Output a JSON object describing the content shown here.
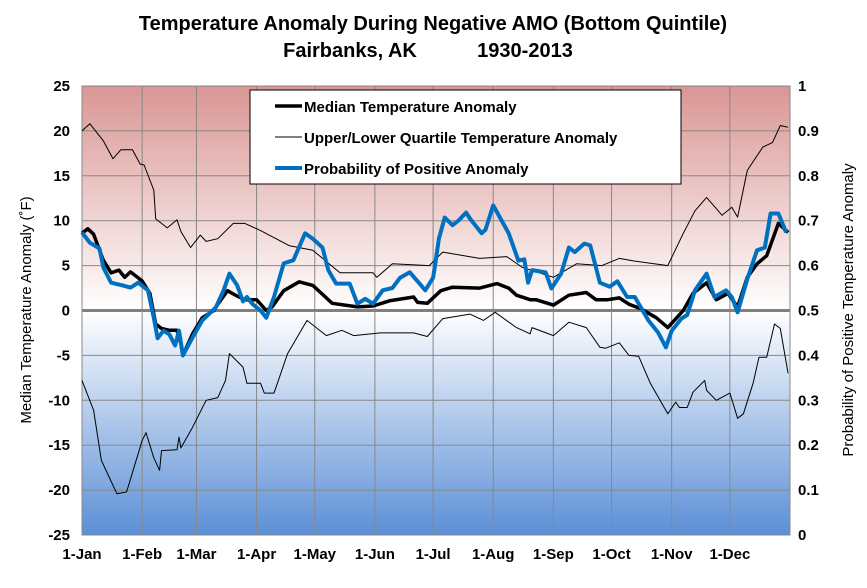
{
  "chart_data": {
    "type": "line",
    "title": "Temperature Anomaly During Negative AMO (Bottom Quintile)",
    "subtitle_location": "Fairbanks, AK",
    "subtitle_period": "1930-2013",
    "ylabel": "Median Temperature Anomaly (˚F)",
    "y2label": "Probability of Positive Temperature Anomaly",
    "xlabel": "",
    "ylim": [
      -25,
      25
    ],
    "y2lim": [
      0,
      1
    ],
    "yticks": [
      "25",
      "20",
      "15",
      "10",
      "5",
      "0",
      "-5",
      "-10",
      "-15",
      "-20",
      "-25"
    ],
    "y2ticks": [
      "1",
      "0.9",
      "0.8",
      "0.7",
      "0.6",
      "0.5",
      "0.4",
      "0.3",
      "0.2",
      "0.1",
      "0"
    ],
    "xticks": [
      "1-Jan",
      "1-Feb",
      "1-Mar",
      "1-Apr",
      "1-May",
      "1-Jun",
      "1-Jul",
      "1-Aug",
      "1-Sep",
      "1-Oct",
      "1-Nov",
      "1-Dec"
    ],
    "grid": true,
    "legend_placement": "top-center",
    "colors": {
      "median": "#000000",
      "quartile": "#000000",
      "probability": "#0070C0",
      "background_top": "#D99694",
      "background_bottom": "#5B8FD6",
      "zero_line": "#808080"
    },
    "series": [
      {
        "name": "Median Temperature Anomaly",
        "axis": "left",
        "points": [
          [
            "1-Jan",
            8.6
          ],
          [
            "4-Jan",
            9.1
          ],
          [
            "7-Jan",
            8.5
          ],
          [
            "12-Jan",
            5.6
          ],
          [
            "16-Jan",
            4.2
          ],
          [
            "20-Jan",
            4.5
          ],
          [
            "23-Jan",
            3.7
          ],
          [
            "26-Jan",
            4.3
          ],
          [
            "1-Feb",
            3.3
          ],
          [
            "5-Feb",
            1.9
          ],
          [
            "8-Feb",
            -1.5
          ],
          [
            "11-Feb",
            -2.0
          ],
          [
            "15-Feb",
            -2.2
          ],
          [
            "19-Feb",
            -2.2
          ],
          [
            "21-Feb",
            -3.7
          ],
          [
            "22-Feb",
            -5.0
          ],
          [
            "27-Feb",
            -2.6
          ],
          [
            "4-Mar",
            -0.8
          ],
          [
            "10-Mar",
            0
          ],
          [
            "12-Mar",
            0.7
          ],
          [
            "17-Mar",
            2.2
          ],
          [
            "22-Mar",
            1.6
          ],
          [
            "26-Mar",
            1.2
          ],
          [
            "1-Apr",
            1.2
          ],
          [
            "6-Apr",
            0
          ],
          [
            "9-Apr",
            0.4
          ],
          [
            "15-Apr",
            2.2
          ],
          [
            "23-Apr",
            3.2
          ],
          [
            "30-Apr",
            2.8
          ],
          [
            "10-May",
            0.8
          ],
          [
            "23-May",
            0.4
          ],
          [
            "31-May",
            0.5
          ],
          [
            "9-Jun",
            1.1
          ],
          [
            "21-Jun",
            1.5
          ],
          [
            "23-Jun",
            0.9
          ],
          [
            "28-Jun",
            0.8
          ],
          [
            "5-Jul",
            2.2
          ],
          [
            "11-Jul",
            2.6
          ],
          [
            "25-Jul",
            2.5
          ],
          [
            "3-Aug",
            3.0
          ],
          [
            "9-Aug",
            2.5
          ],
          [
            "13-Aug",
            1.7
          ],
          [
            "20-Aug",
            1.2
          ],
          [
            "23-Aug",
            1.2
          ],
          [
            "1-Sep",
            0.6
          ],
          [
            "9-Sep",
            1.7
          ],
          [
            "18-Sep",
            2.0
          ],
          [
            "23-Sep",
            1.2
          ],
          [
            "29-Sep",
            1.2
          ],
          [
            "5-Oct",
            1.4
          ],
          [
            "10-Oct",
            0.7
          ],
          [
            "16-Oct",
            0.2
          ],
          [
            "24-Oct",
            -0.8
          ],
          [
            "30-Oct",
            -1.9
          ],
          [
            "7-Nov",
            0
          ],
          [
            "12-Nov",
            1.9
          ],
          [
            "19-Nov",
            3.1
          ],
          [
            "24-Nov",
            1.2
          ],
          [
            "30-Nov",
            1.9
          ],
          [
            "5-Dec",
            0.4
          ],
          [
            "10-Dec",
            3.7
          ],
          [
            "15-Dec",
            5.2
          ],
          [
            "20-Dec",
            6.1
          ],
          [
            "26-Dec",
            9.7
          ],
          [
            "31-Dec",
            8.7
          ]
        ]
      },
      {
        "name": "Upper/Lower Quartile Temperature Anomaly",
        "axis": "left",
        "role": "upper",
        "points": [
          [
            "1-Jan",
            20.0
          ],
          [
            "5-Jan",
            20.8
          ],
          [
            "12-Jan",
            18.9
          ],
          [
            "17-Jan",
            16.9
          ],
          [
            "21-Jan",
            17.9
          ],
          [
            "27-Jan",
            17.9
          ],
          [
            "31-Jan",
            16.3
          ],
          [
            "2-Feb",
            16.2
          ],
          [
            "7-Feb",
            13.4
          ],
          [
            "8-Feb",
            10.2
          ],
          [
            "14-Feb",
            9.2
          ],
          [
            "19-Feb",
            10.1
          ],
          [
            "21-Feb",
            8.8
          ],
          [
            "26-Feb",
            7.0
          ],
          [
            "3-Mar",
            8.4
          ],
          [
            "6-Mar",
            7.7
          ],
          [
            "12-Mar",
            8.0
          ],
          [
            "20-Mar",
            9.7
          ],
          [
            "26-Mar",
            9.7
          ],
          [
            "3-Apr",
            8.9
          ],
          [
            "18-Apr",
            7.2
          ],
          [
            "30-Apr",
            6.7
          ],
          [
            "14-May",
            4.2
          ],
          [
            "31-May",
            4.2
          ],
          [
            "2-Jun",
            3.7
          ],
          [
            "10-Jun",
            5.2
          ],
          [
            "29-Jun",
            5.0
          ],
          [
            "6-Jul",
            6.5
          ],
          [
            "25-Jul",
            5.8
          ],
          [
            "8-Aug",
            6.0
          ],
          [
            "16-Aug",
            4.8
          ],
          [
            "1-Sep",
            3.7
          ],
          [
            "13-Sep",
            5.2
          ],
          [
            "26-Sep",
            5.0
          ],
          [
            "5-Oct",
            5.8
          ],
          [
            "13-Oct",
            5.5
          ],
          [
            "30-Oct",
            5.0
          ],
          [
            "7-Nov",
            8.6
          ],
          [
            "13-Nov",
            11.1
          ],
          [
            "19-Nov",
            12.6
          ],
          [
            "27-Nov",
            10.6
          ],
          [
            "2-Dec",
            11.5
          ],
          [
            "5-Dec",
            10.4
          ],
          [
            "10-Dec",
            15.6
          ],
          [
            "18-Dec",
            18.2
          ],
          [
            "23-Dec",
            18.7
          ],
          [
            "27-Dec",
            20.6
          ],
          [
            "31-Dec",
            20.4
          ]
        ]
      },
      {
        "axis": "left",
        "role": "lower",
        "points": [
          [
            "1-Jan",
            -7.8
          ],
          [
            "7-Jan",
            -11.1
          ],
          [
            "11-Jan",
            -16.7
          ],
          [
            "19-Jan",
            -20.4
          ],
          [
            "24-Jan",
            -20.2
          ],
          [
            "1-Feb",
            -14.5
          ],
          [
            "3-Feb",
            -13.6
          ],
          [
            "7-Feb",
            -16.4
          ],
          [
            "10-Feb",
            -17.8
          ],
          [
            "11-Feb",
            -15.6
          ],
          [
            "19-Feb",
            -15.5
          ],
          [
            "20-Feb",
            -14.1
          ],
          [
            "21-Feb",
            -15.3
          ],
          [
            "27-Feb",
            -13.0
          ],
          [
            "6-Mar",
            -10.0
          ],
          [
            "12-Mar",
            -9.7
          ],
          [
            "16-Mar",
            -7.8
          ],
          [
            "18-Mar",
            -4.8
          ],
          [
            "25-Mar",
            -6.3
          ],
          [
            "27-Mar",
            -8.1
          ],
          [
            "3-Apr",
            -8.1
          ],
          [
            "5-Apr",
            -9.2
          ],
          [
            "10-Apr",
            -9.2
          ],
          [
            "17-Apr",
            -4.8
          ],
          [
            "27-Apr",
            -1.1
          ],
          [
            "7-May",
            -2.8
          ],
          [
            "15-May",
            -2.2
          ],
          [
            "21-May",
            -2.8
          ],
          [
            "4-Jun",
            -2.5
          ],
          [
            "21-Jun",
            -2.5
          ],
          [
            "28-Jun",
            -2.9
          ],
          [
            "6-Jul",
            -0.9
          ],
          [
            "20-Jul",
            -0.4
          ],
          [
            "27-Jul",
            -1.1
          ],
          [
            "2-Aug",
            -0.2
          ],
          [
            "13-Aug",
            -1.9
          ],
          [
            "20-Aug",
            -2.6
          ],
          [
            "21-Aug",
            -1.9
          ],
          [
            "1-Sep",
            -2.8
          ],
          [
            "9-Sep",
            -1.3
          ],
          [
            "18-Sep",
            -1.9
          ],
          [
            "25-Sep",
            -4.1
          ],
          [
            "28-Sep",
            -4.2
          ],
          [
            "5-Oct",
            -3.6
          ],
          [
            "10-Oct",
            -5.0
          ],
          [
            "15-Oct",
            -5.1
          ],
          [
            "21-Oct",
            -8.1
          ],
          [
            "30-Oct",
            -11.5
          ],
          [
            "3-Nov",
            -10.2
          ],
          [
            "5-Nov",
            -10.8
          ],
          [
            "9-Nov",
            -10.8
          ],
          [
            "12-Nov",
            -9.1
          ],
          [
            "18-Nov",
            -7.8
          ],
          [
            "19-Nov",
            -8.9
          ],
          [
            "24-Nov",
            -10.0
          ],
          [
            "1-Dec",
            -9.2
          ],
          [
            "5-Dec",
            -12.0
          ],
          [
            "8-Dec",
            -11.5
          ],
          [
            "13-Dec",
            -8.1
          ],
          [
            "16-Dec",
            -5.2
          ],
          [
            "20-Dec",
            -5.2
          ],
          [
            "24-Dec",
            -1.5
          ],
          [
            "27-Dec",
            -2.0
          ],
          [
            "31-Dec",
            -7.0
          ]
        ]
      },
      {
        "name": "Probability of Positive Anomaly",
        "axis": "right",
        "points": [
          [
            "1-Jan",
            0.674
          ],
          [
            "5-Jan",
            0.651
          ],
          [
            "10-Jan",
            0.638
          ],
          [
            "12-Jan",
            0.596
          ],
          [
            "16-Jan",
            0.562
          ],
          [
            "22-Jan",
            0.556
          ],
          [
            "26-Jan",
            0.551
          ],
          [
            "30-Jan",
            0.562
          ],
          [
            "4-Feb",
            0.545
          ],
          [
            "7-Feb",
            0.484
          ],
          [
            "9-Feb",
            0.438
          ],
          [
            "12-Feb",
            0.455
          ],
          [
            "15-Feb",
            0.447
          ],
          [
            "18-Feb",
            0.422
          ],
          [
            "20-Feb",
            0.455
          ],
          [
            "22-Feb",
            0.4
          ],
          [
            "27-Feb",
            0.44
          ],
          [
            "4-Mar",
            0.478
          ],
          [
            "11-Mar",
            0.507
          ],
          [
            "15-Mar",
            0.545
          ],
          [
            "18-Mar",
            0.582
          ],
          [
            "22-Mar",
            0.556
          ],
          [
            "25-Mar",
            0.52
          ],
          [
            "27-Mar",
            0.53
          ],
          [
            "30-Mar",
            0.514
          ],
          [
            "3-Apr",
            0.5
          ],
          [
            "6-Apr",
            0.484
          ],
          [
            "10-Apr",
            0.53
          ],
          [
            "15-Apr",
            0.605
          ],
          [
            "20-Apr",
            0.612
          ],
          [
            "26-Apr",
            0.672
          ],
          [
            "30-Apr",
            0.66
          ],
          [
            "5-May",
            0.64
          ],
          [
            "8-May",
            0.59
          ],
          [
            "12-May",
            0.56
          ],
          [
            "19-May",
            0.56
          ],
          [
            "23-May",
            0.515
          ],
          [
            "27-May",
            0.526
          ],
          [
            "31-May",
            0.515
          ],
          [
            "5-Jun",
            0.545
          ],
          [
            "10-Jun",
            0.55
          ],
          [
            "14-Jun",
            0.573
          ],
          [
            "19-Jun",
            0.585
          ],
          [
            "23-Jun",
            0.565
          ],
          [
            "27-Jun",
            0.545
          ],
          [
            "1-Jul",
            0.573
          ],
          [
            "2-Jul",
            0.6
          ],
          [
            "4-Jul",
            0.66
          ],
          [
            "7-Jul",
            0.707
          ],
          [
            "11-Jul",
            0.69
          ],
          [
            "14-Jul",
            0.7
          ],
          [
            "18-Jul",
            0.718
          ],
          [
            "20-Jul",
            0.705
          ],
          [
            "26-Jul",
            0.672
          ],
          [
            "28-Jul",
            0.68
          ],
          [
            "1-Aug",
            0.734
          ],
          [
            "9-Aug",
            0.672
          ],
          [
            "14-Aug",
            0.611
          ],
          [
            "17-Aug",
            0.614
          ],
          [
            "19-Aug",
            0.562
          ],
          [
            "21-Aug",
            0.59
          ],
          [
            "28-Aug",
            0.585
          ],
          [
            "31-Aug",
            0.549
          ],
          [
            "5-Sep",
            0.582
          ],
          [
            "9-Sep",
            0.64
          ],
          [
            "12-Sep",
            0.63
          ],
          [
            "17-Sep",
            0.649
          ],
          [
            "20-Sep",
            0.645
          ],
          [
            "25-Sep",
            0.562
          ],
          [
            "30-Sep",
            0.553
          ],
          [
            "4-Oct",
            0.565
          ],
          [
            "9-Oct",
            0.53
          ],
          [
            "13-Oct",
            0.53
          ],
          [
            "20-Oct",
            0.478
          ],
          [
            "25-Oct",
            0.451
          ],
          [
            "29-Oct",
            0.418
          ],
          [
            "1-Nov",
            0.455
          ],
          [
            "6-Nov",
            0.482
          ],
          [
            "9-Nov",
            0.49
          ],
          [
            "13-Nov",
            0.545
          ],
          [
            "19-Nov",
            0.582
          ],
          [
            "23-Nov",
            0.53
          ],
          [
            "29-Nov",
            0.545
          ],
          [
            "2-Dec",
            0.53
          ],
          [
            "5-Dec",
            0.496
          ],
          [
            "10-Dec",
            0.57
          ],
          [
            "15-Dec",
            0.634
          ],
          [
            "19-Dec",
            0.64
          ],
          [
            "22-Dec",
            0.716
          ],
          [
            "26-Dec",
            0.716
          ],
          [
            "30-Dec",
            0.674
          ]
        ]
      }
    ]
  }
}
